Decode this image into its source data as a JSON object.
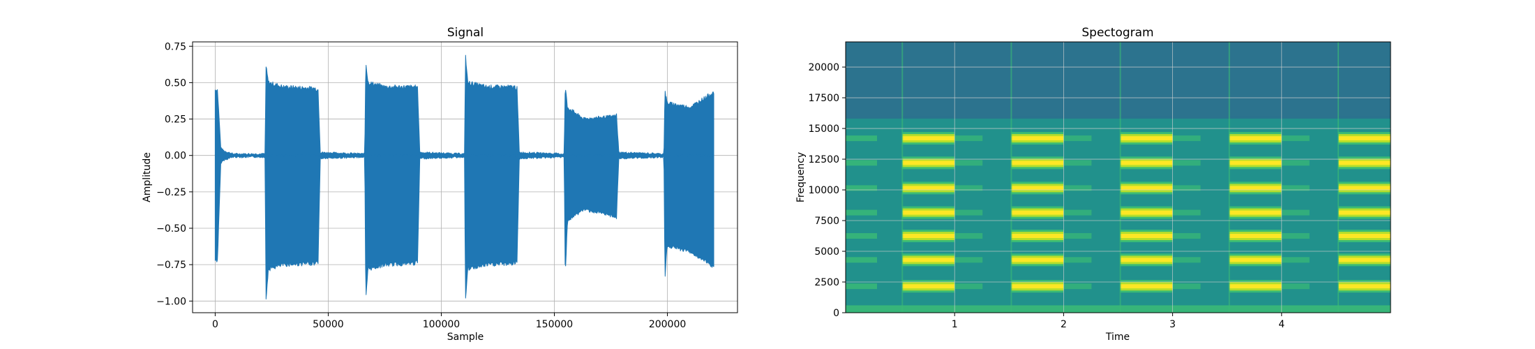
{
  "chart_data": [
    {
      "type": "line",
      "title": "Signal",
      "xlabel": "Sample",
      "ylabel": "Amplitude",
      "xlim": [
        -10000,
        231000
      ],
      "ylim": [
        -1.08,
        0.78
      ],
      "xticks": [
        0,
        50000,
        100000,
        150000,
        200000
      ],
      "xtick_labels": [
        "0",
        "50000",
        "100000",
        "150000",
        "200000"
      ],
      "yticks": [
        -1.0,
        -0.75,
        -0.5,
        -0.25,
        0.0,
        0.25,
        0.5,
        0.75
      ],
      "ytick_labels": [
        "−1.00",
        "−0.75",
        "−0.50",
        "−0.25",
        "0.00",
        "0.25",
        "0.50",
        "0.75"
      ],
      "grid": true,
      "line_color": "#1f77b4",
      "envelope": {
        "x": [
          0,
          1000,
          2500,
          4000,
          8000,
          22050,
          22500,
          23500,
          30000,
          44000,
          45500,
          46500,
          66150,
          66600,
          67600,
          75000,
          88500,
          89500,
          90500,
          110250,
          110700,
          111700,
          120000,
          132500,
          133500,
          134500,
          154350,
          154800,
          155800,
          163000,
          177000,
          177500,
          178500,
          198450,
          198900,
          199900,
          210000,
          220000,
          220500
        ],
        "upper": [
          0.45,
          0.45,
          0.05,
          0.03,
          0.01,
          0.01,
          0.61,
          0.5,
          0.47,
          0.46,
          0.45,
          0.02,
          0.01,
          0.65,
          0.5,
          0.47,
          0.47,
          0.46,
          0.02,
          0.01,
          0.69,
          0.5,
          0.47,
          0.47,
          0.46,
          0.02,
          0.01,
          0.48,
          0.33,
          0.25,
          0.27,
          0.28,
          0.02,
          0.01,
          0.44,
          0.36,
          0.33,
          0.43,
          0.43
        ],
        "lower": [
          -0.72,
          -0.72,
          -0.05,
          -0.03,
          -0.01,
          -0.01,
          -1.0,
          -0.78,
          -0.75,
          -0.74,
          -0.73,
          -0.02,
          -0.01,
          -1.0,
          -0.78,
          -0.75,
          -0.74,
          -0.73,
          -0.02,
          -0.01,
          -1.0,
          -0.78,
          -0.75,
          -0.74,
          -0.73,
          -0.02,
          -0.01,
          -0.84,
          -0.45,
          -0.37,
          -0.42,
          -0.43,
          -0.02,
          -0.01,
          -0.84,
          -0.62,
          -0.66,
          -0.76,
          -0.77
        ]
      }
    },
    {
      "type": "heatmap",
      "title": "Spectogram",
      "xlabel": "Time",
      "ylabel": "Frequency",
      "xlim": [
        0,
        5
      ],
      "ylim": [
        0,
        22050
      ],
      "xticks": [
        1,
        2,
        3,
        4
      ],
      "xtick_labels": [
        "1",
        "2",
        "3",
        "4"
      ],
      "yticks": [
        0,
        2500,
        5000,
        7500,
        10000,
        12500,
        15000,
        17500,
        20000
      ],
      "ytick_labels": [
        "0",
        "2500",
        "5000",
        "7500",
        "10000",
        "12500",
        "15000",
        "17500",
        "20000"
      ],
      "grid": true,
      "colormap": "viridis",
      "tone_segments": [
        [
          0.52,
          1.0
        ],
        [
          1.52,
          2.0
        ],
        [
          2.52,
          3.0
        ],
        [
          3.52,
          4.0
        ],
        [
          4.52,
          5.0
        ]
      ],
      "harmonic_frequencies": [
        2150,
        4300,
        6250,
        8150,
        10150,
        12200,
        14200
      ],
      "high_cutoff_frequency": 15800,
      "colors": {
        "floor": "#2c738e",
        "mid": "#21918c",
        "green": "#3bbb75",
        "lime": "#b5de2b",
        "peak": "#fde725"
      }
    }
  ]
}
